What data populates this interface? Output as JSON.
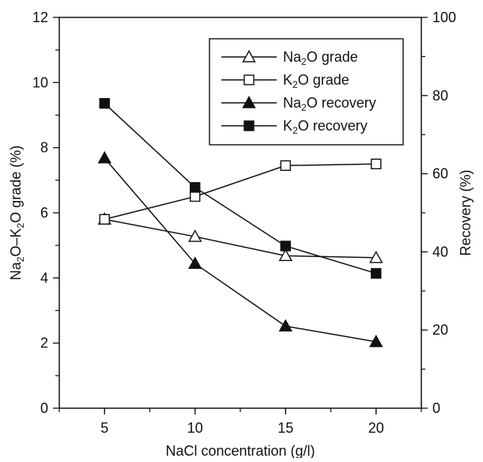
{
  "chart_data": {
    "type": "line",
    "title": "",
    "x": [
      5,
      10,
      15,
      20
    ],
    "xlabel": "NaCl concentration (g/l)",
    "x_ticks": [
      5,
      10,
      15,
      20
    ],
    "xlim": [
      2.5,
      22.5
    ],
    "ylabel_left": {
      "parts": [
        {
          "t": "Na"
        },
        {
          "t": "2",
          "sub": true
        },
        {
          "t": "O–K"
        },
        {
          "t": "2",
          "sub": true
        },
        {
          "t": "O grade (%)"
        }
      ]
    },
    "ylim_left": [
      0,
      12
    ],
    "y_ticks_left": [
      0,
      2,
      4,
      6,
      8,
      10,
      12
    ],
    "ylabel_right": "Recovery (%)",
    "ylim_right": [
      0,
      100
    ],
    "y_ticks_right": [
      0,
      20,
      40,
      60,
      80,
      100
    ],
    "grid": false,
    "legend_position": "top-right",
    "series": [
      {
        "name": "Na2O grade",
        "label_parts": [
          {
            "t": "Na"
          },
          {
            "t": "2",
            "sub": true
          },
          {
            "t": "O grade"
          }
        ],
        "axis": "left",
        "marker": "triangle",
        "filled": false,
        "values": [
          5.8,
          5.27,
          4.68,
          4.62
        ]
      },
      {
        "name": "K2O grade",
        "label_parts": [
          {
            "t": "K"
          },
          {
            "t": "2",
            "sub": true
          },
          {
            "t": "O grade"
          }
        ],
        "axis": "left",
        "marker": "square",
        "filled": false,
        "values": [
          5.8,
          6.5,
          7.45,
          7.5
        ]
      },
      {
        "name": "Na2O recovery",
        "label_parts": [
          {
            "t": "Na"
          },
          {
            "t": "2",
            "sub": true
          },
          {
            "t": "O recovery"
          }
        ],
        "axis": "right",
        "marker": "triangle",
        "filled": true,
        "values": [
          64,
          37,
          21,
          17
        ]
      },
      {
        "name": "K2O recovery",
        "label_parts": [
          {
            "t": "K"
          },
          {
            "t": "2",
            "sub": true
          },
          {
            "t": "O recovery"
          }
        ],
        "axis": "right",
        "marker": "square",
        "filled": true,
        "values": [
          78,
          56.5,
          41.5,
          34.5
        ]
      }
    ]
  }
}
